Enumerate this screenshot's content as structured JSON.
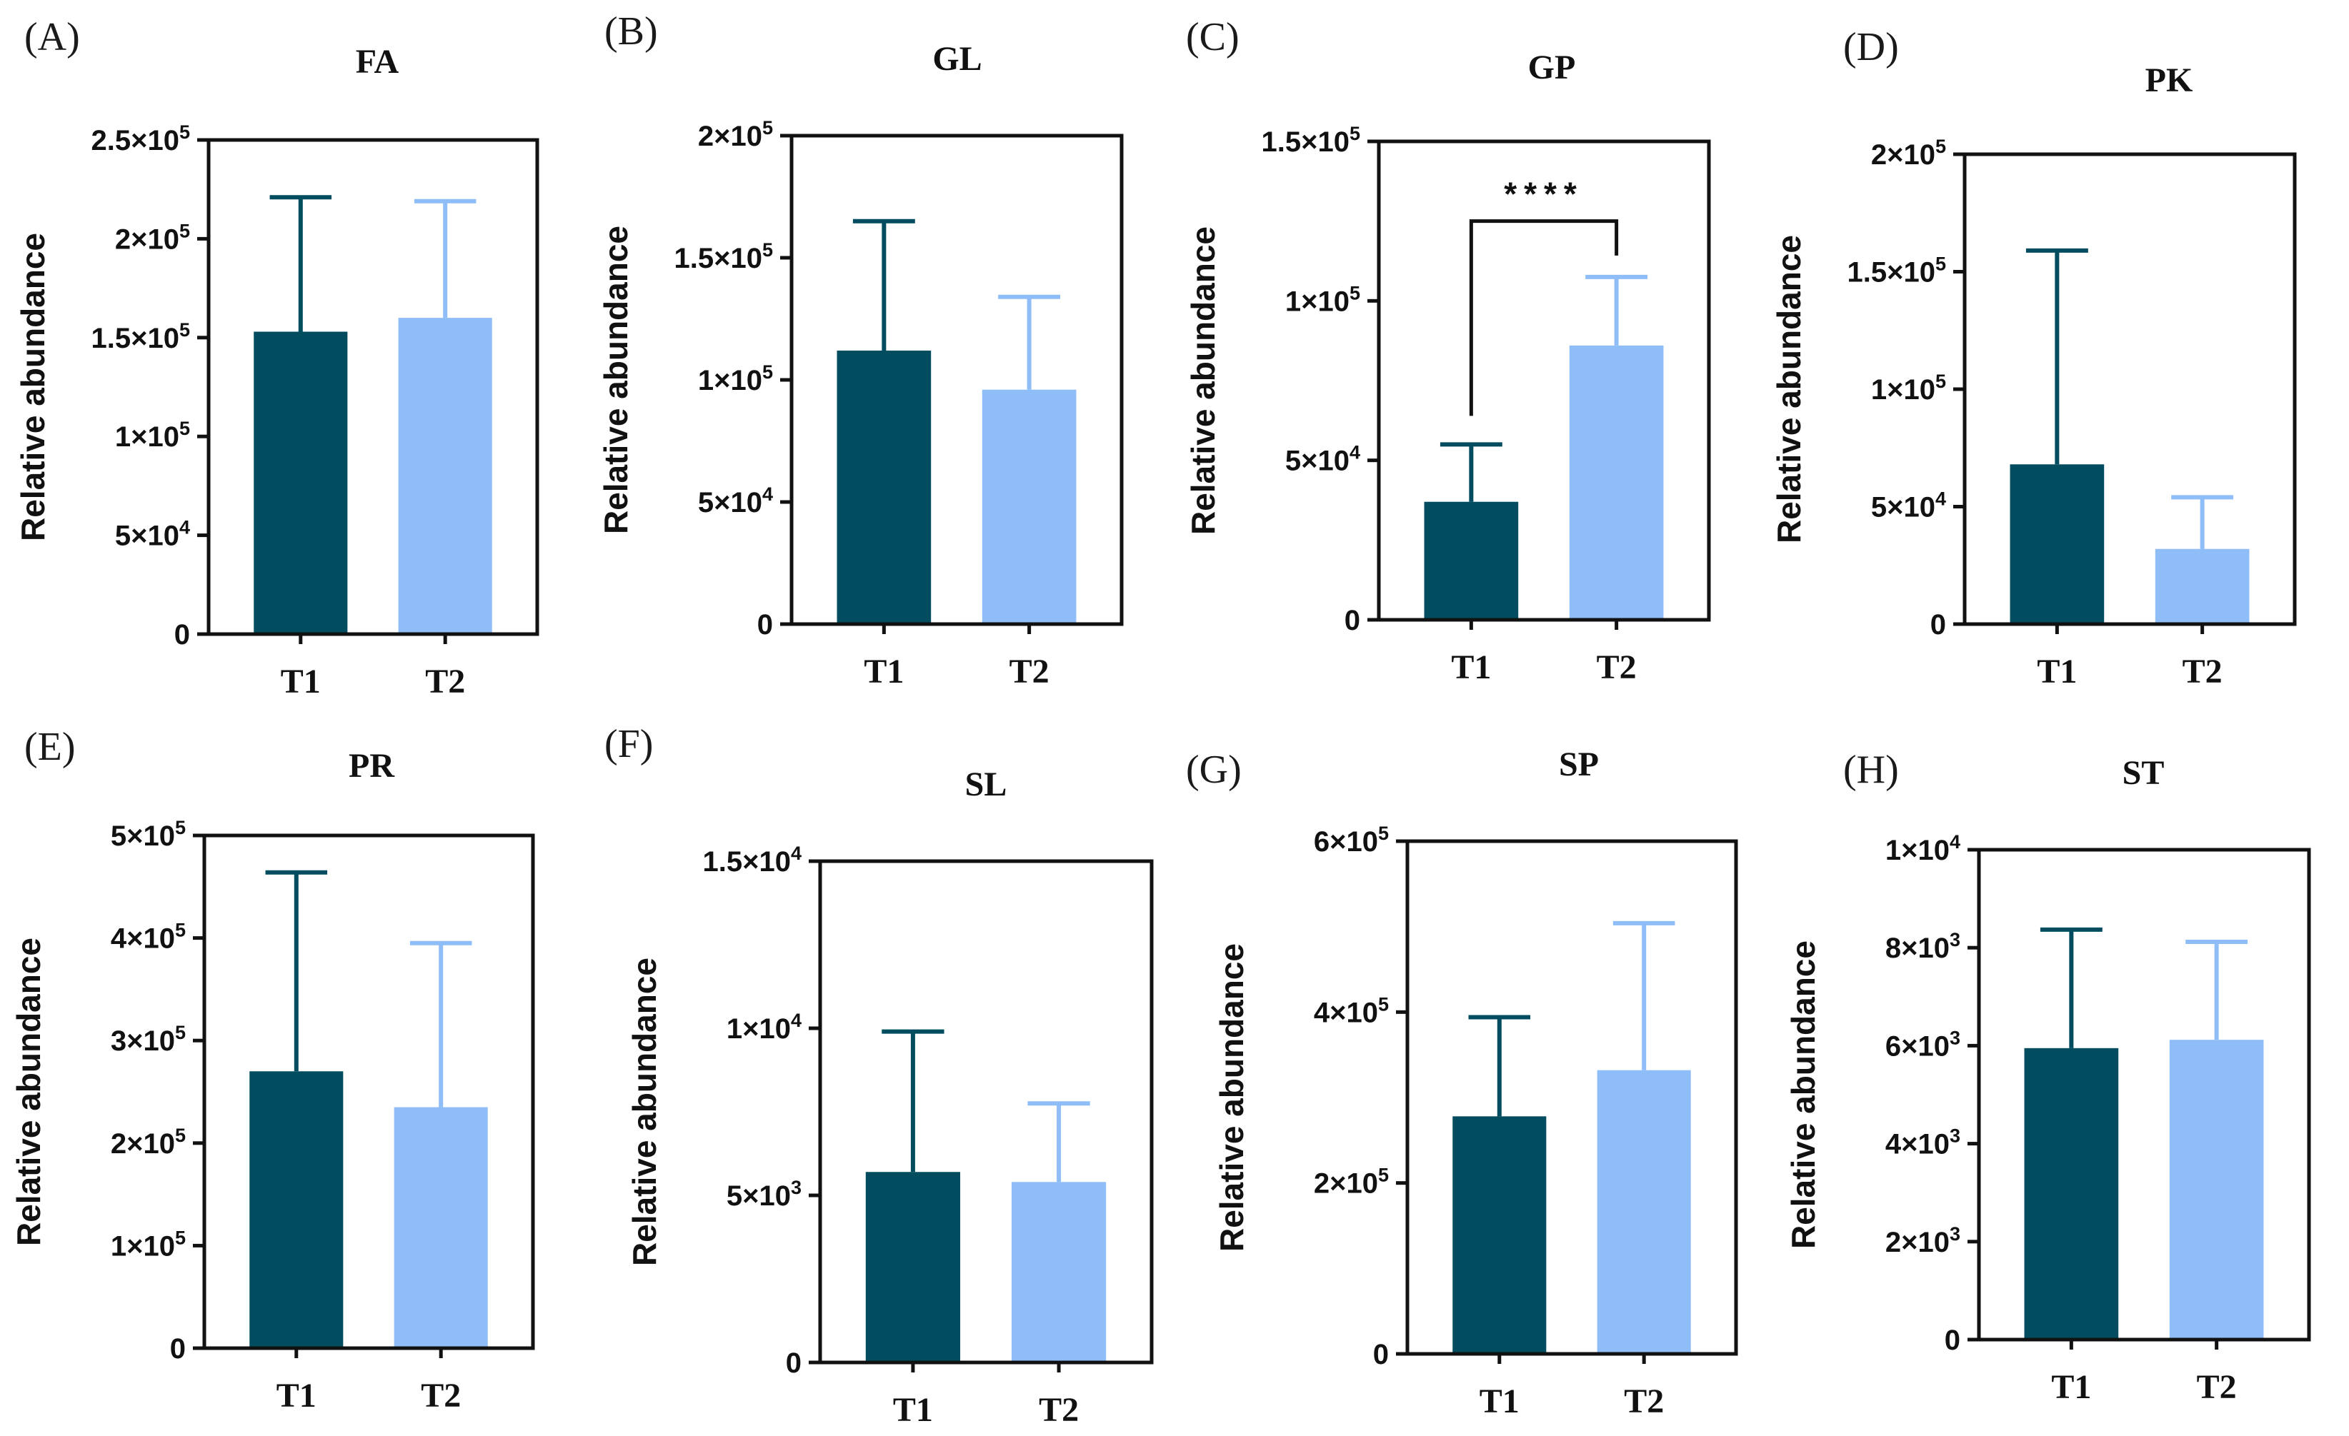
{
  "figure": {
    "colors": {
      "T1": "#014d5f",
      "T2": "#8fbdf8",
      "axis": "#111111"
    }
  },
  "chart_data": [
    {
      "type": "bar",
      "panel_label": "(A)",
      "title": "FA",
      "ylabel": "Relative abundance",
      "xlabel": "",
      "categories": [
        "T1",
        "T2"
      ],
      "values": [
        153000,
        160000
      ],
      "error": [
        68000,
        59000
      ],
      "ylim": [
        0,
        250000
      ],
      "yticks": [
        0,
        50000,
        100000,
        150000,
        200000,
        250000
      ],
      "ytick_labels": [
        {
          "base": "0",
          "exp": ""
        },
        {
          "base": "5×10",
          "exp": "4"
        },
        {
          "base": "1×10",
          "exp": "5"
        },
        {
          "base": "1.5×10",
          "exp": "5"
        },
        {
          "base": "2×10",
          "exp": "5"
        },
        {
          "base": "2.5×10",
          "exp": "5"
        }
      ],
      "significance": null
    },
    {
      "type": "bar",
      "panel_label": "(B)",
      "title": "GL",
      "ylabel": "Relative abundance",
      "xlabel": "",
      "categories": [
        "T1",
        "T2"
      ],
      "values": [
        112000,
        96000
      ],
      "error": [
        53000,
        38000
      ],
      "ylim": [
        0,
        200000
      ],
      "yticks": [
        0,
        50000,
        100000,
        150000,
        200000
      ],
      "ytick_labels": [
        {
          "base": "0",
          "exp": ""
        },
        {
          "base": "5×10",
          "exp": "4"
        },
        {
          "base": "1×10",
          "exp": "5"
        },
        {
          "base": "1.5×10",
          "exp": "5"
        },
        {
          "base": "2×10",
          "exp": "5"
        }
      ],
      "significance": null
    },
    {
      "type": "bar",
      "panel_label": "(C)",
      "title": "GP",
      "ylabel": "Relative abundance",
      "xlabel": "",
      "categories": [
        "T1",
        "T2"
      ],
      "values": [
        37000,
        86000
      ],
      "error": [
        18000,
        21500
      ],
      "ylim": [
        0,
        150000
      ],
      "yticks": [
        0,
        50000,
        100000,
        150000
      ],
      "ytick_labels": [
        {
          "base": "0",
          "exp": ""
        },
        {
          "base": "5×10",
          "exp": "4"
        },
        {
          "base": "1×10",
          "exp": "5"
        },
        {
          "base": "1.5×10",
          "exp": "5"
        }
      ],
      "significance": {
        "label": "****",
        "between": [
          "T1",
          "T2"
        ],
        "y": 125000
      }
    },
    {
      "type": "bar",
      "panel_label": "(D)",
      "title": "PK",
      "ylabel": "Relative abundance",
      "xlabel": "",
      "categories": [
        "T1",
        "T2"
      ],
      "values": [
        68000,
        32000
      ],
      "error": [
        91000,
        22000
      ],
      "ylim": [
        0,
        200000
      ],
      "yticks": [
        0,
        50000,
        100000,
        150000,
        200000
      ],
      "ytick_labels": [
        {
          "base": "0",
          "exp": ""
        },
        {
          "base": "5×10",
          "exp": "4"
        },
        {
          "base": "1×10",
          "exp": "5"
        },
        {
          "base": "1.5×10",
          "exp": "5"
        },
        {
          "base": "2×10",
          "exp": "5"
        }
      ],
      "significance": null
    },
    {
      "type": "bar",
      "panel_label": "(E)",
      "title": "PR",
      "ylabel": "Relative abundance",
      "xlabel": "",
      "categories": [
        "T1",
        "T2"
      ],
      "values": [
        270000,
        235000
      ],
      "error": [
        194000,
        160000
      ],
      "ylim": [
        0,
        500000
      ],
      "yticks": [
        0,
        100000,
        200000,
        300000,
        400000,
        500000
      ],
      "ytick_labels": [
        {
          "base": "0",
          "exp": ""
        },
        {
          "base": "1×10",
          "exp": "5"
        },
        {
          "base": "2×10",
          "exp": "5"
        },
        {
          "base": "3×10",
          "exp": "5"
        },
        {
          "base": "4×10",
          "exp": "5"
        },
        {
          "base": "5×10",
          "exp": "5"
        }
      ],
      "significance": null
    },
    {
      "type": "bar",
      "panel_label": "(F)",
      "title": "SL",
      "ylabel": "Relative abundance",
      "xlabel": "",
      "categories": [
        "T1",
        "T2"
      ],
      "values": [
        5700,
        5400
      ],
      "error": [
        4200,
        2350
      ],
      "ylim": [
        0,
        15000
      ],
      "yticks": [
        0,
        5000,
        10000,
        15000
      ],
      "ytick_labels": [
        {
          "base": "0",
          "exp": ""
        },
        {
          "base": "5×10",
          "exp": "3"
        },
        {
          "base": "1×10",
          "exp": "4"
        },
        {
          "base": "1.5×10",
          "exp": "4"
        }
      ],
      "significance": null
    },
    {
      "type": "bar",
      "panel_label": "(G)",
      "title": "SP",
      "ylabel": "Relative abundance",
      "xlabel": "",
      "categories": [
        "T1",
        "T2"
      ],
      "values": [
        278000,
        332000
      ],
      "error": [
        116000,
        172000
      ],
      "ylim": [
        0,
        600000
      ],
      "yticks": [
        0,
        200000,
        400000,
        600000
      ],
      "ytick_labels": [
        {
          "base": "0",
          "exp": ""
        },
        {
          "base": "2×10",
          "exp": "5"
        },
        {
          "base": "4×10",
          "exp": "5"
        },
        {
          "base": "6×10",
          "exp": "5"
        }
      ],
      "significance": null
    },
    {
      "type": "bar",
      "panel_label": "(H)",
      "title": "ST",
      "ylabel": "Relative abundance",
      "xlabel": "",
      "categories": [
        "T1",
        "T2"
      ],
      "values": [
        5950,
        6120
      ],
      "error": [
        2420,
        2000
      ],
      "ylim": [
        0,
        10000
      ],
      "yticks": [
        0,
        2000,
        4000,
        6000,
        8000,
        10000
      ],
      "ytick_labels": [
        {
          "base": "0",
          "exp": ""
        },
        {
          "base": "2×10",
          "exp": "3"
        },
        {
          "base": "4×10",
          "exp": "3"
        },
        {
          "base": "6×10",
          "exp": "3"
        },
        {
          "base": "8×10",
          "exp": "3"
        },
        {
          "base": "1×10",
          "exp": "4"
        }
      ],
      "significance": null
    }
  ]
}
